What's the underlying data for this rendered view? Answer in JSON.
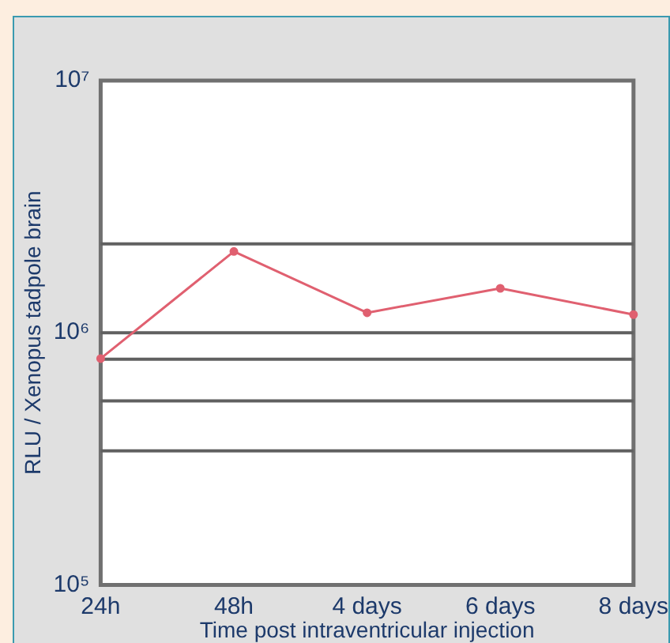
{
  "chart_data": {
    "type": "line",
    "xlabel": "Time post intraventricular injection",
    "ylabel": "RLU / Xenopus tadpole brain",
    "categories": [
      "24h",
      "48h",
      "4 days",
      "6 days",
      "8 days"
    ],
    "series": [
      {
        "color": "#e06070",
        "values": [
          790000,
          2100000,
          1200000,
          1500000,
          1180000
        ]
      }
    ],
    "log": "y",
    "ylim": [
      100000,
      10000000
    ],
    "yticks": [
      {
        "value": 100000,
        "label": "10⁵"
      },
      {
        "value": 1000000,
        "label": "10⁶"
      },
      {
        "value": 10000000,
        "label": "10⁷"
      }
    ],
    "ref_lines": [
      {
        "axis": "y",
        "value": 2250000,
        "color": "#606060"
      },
      {
        "axis": "y",
        "value": 1000000,
        "color": "#606060"
      },
      {
        "axis": "y",
        "value": 785000,
        "color": "#606060"
      },
      {
        "axis": "y",
        "value": 537000,
        "color": "#606060"
      },
      {
        "axis": "y",
        "value": 340000,
        "color": "#606060"
      }
    ],
    "marker": "circle",
    "line_style": "solid",
    "legend": false
  }
}
